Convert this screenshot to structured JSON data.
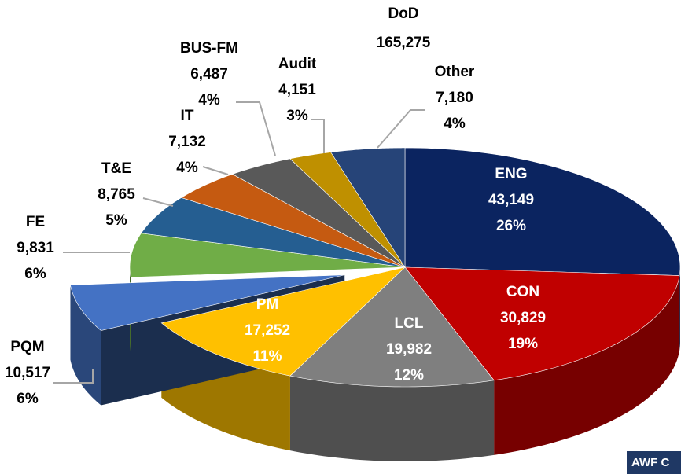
{
  "chart_data": {
    "type": "pie",
    "title": "DoD",
    "subtitle": "165,275",
    "categories": [
      "ENG",
      "CON",
      "LCL",
      "PM",
      "PQM",
      "FE",
      "T&E",
      "IT",
      "BUS-FM",
      "Audit",
      "Other"
    ],
    "values": [
      43149,
      30829,
      19982,
      17252,
      10517,
      9831,
      8765,
      7132,
      6487,
      4151,
      7180
    ],
    "value_labels": [
      "43,149",
      "30,829",
      "19,982",
      "17,252",
      "10,517",
      "9,831",
      "8,765",
      "7,132",
      "6,487",
      "4,151",
      "7,180"
    ],
    "percent_labels": [
      "26%",
      "19%",
      "12%",
      "11%",
      "6%",
      "6%",
      "5%",
      "4%",
      "4%",
      "3%",
      "4%"
    ],
    "colors": [
      "#0b2460",
      "#c00000",
      "#7f7f7f",
      "#ffc000",
      "#4472c4",
      "#70ad47",
      "#255e91",
      "#c55a11",
      "#595959",
      "#bf9000",
      "#264478"
    ],
    "exploded": "PQM",
    "annotation": "AWF C"
  }
}
